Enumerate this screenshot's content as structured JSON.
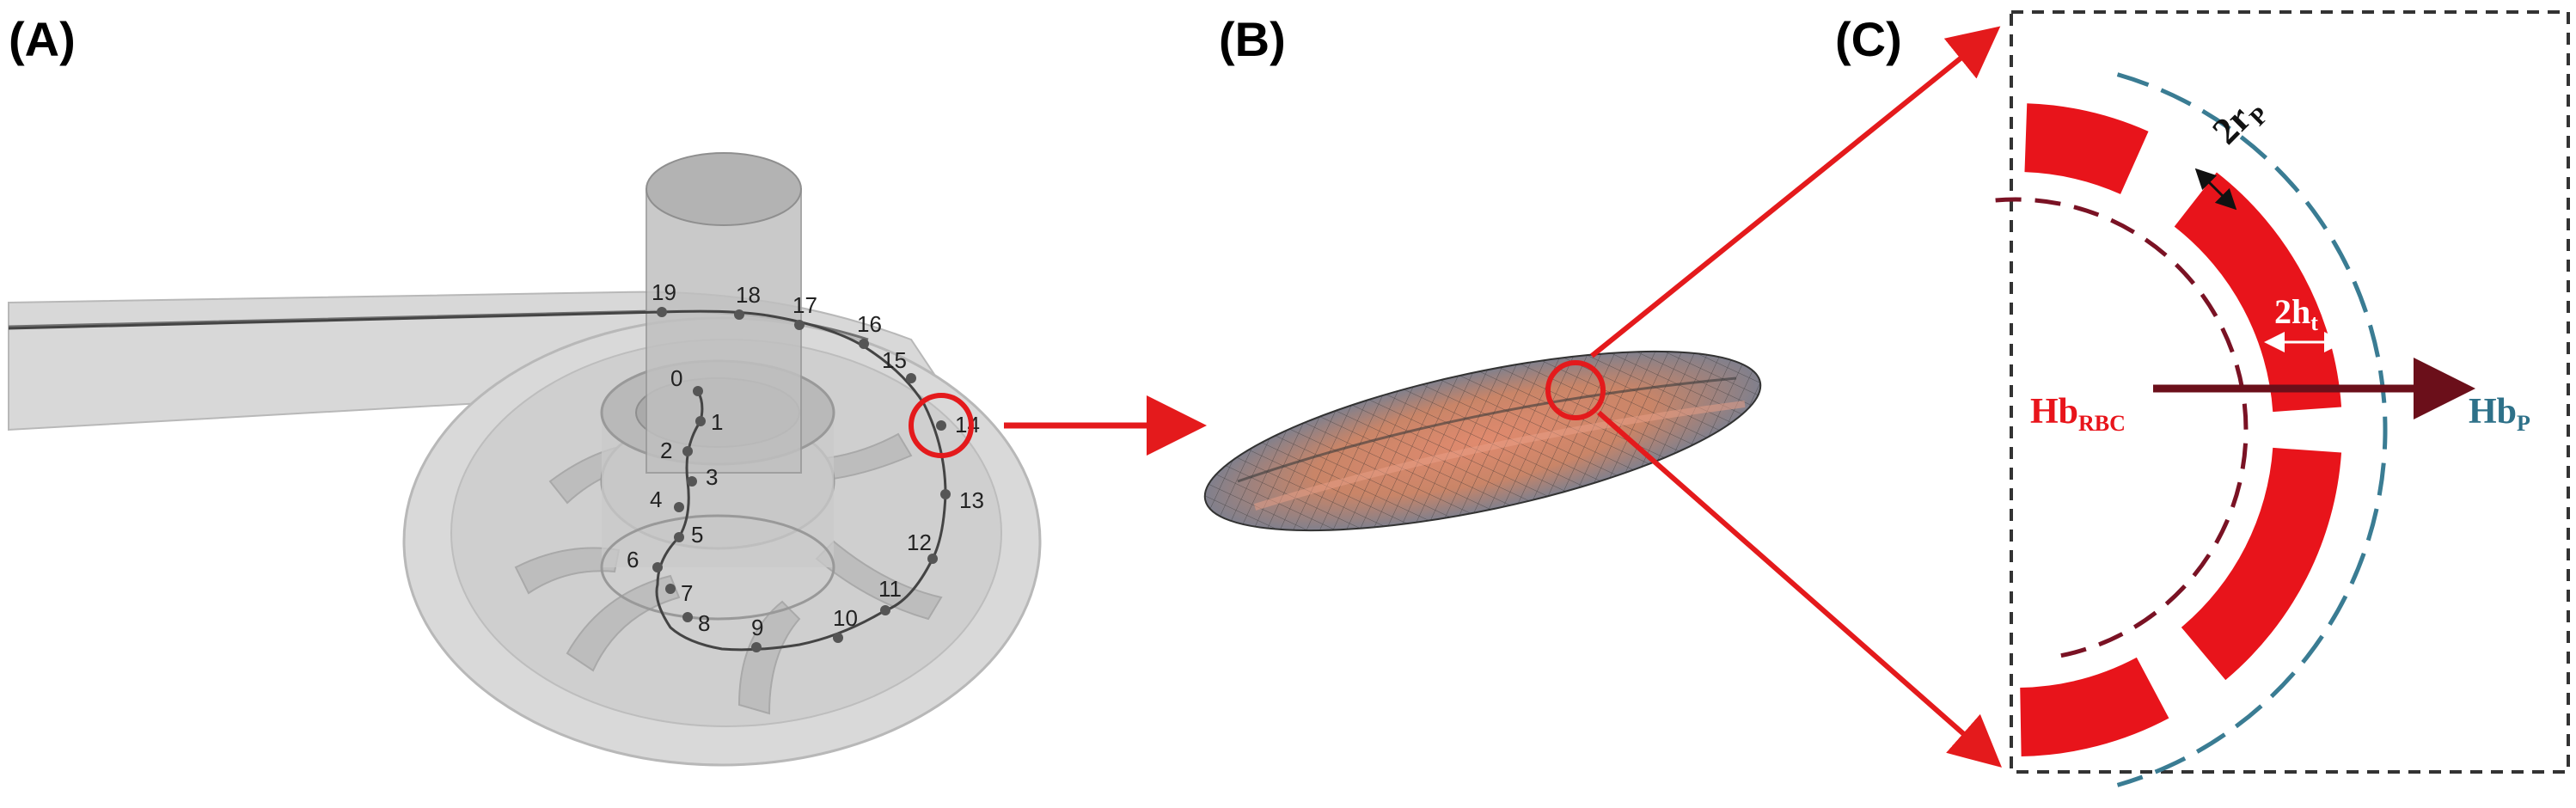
{
  "panels": [
    {
      "label": "(A)"
    },
    {
      "label": "(B)"
    },
    {
      "label": "(C)"
    }
  ],
  "pump": {
    "path_points": [
      "0",
      "1",
      "2",
      "3",
      "4",
      "5",
      "6",
      "7",
      "8",
      "9",
      "10",
      "11",
      "12",
      "13",
      "14",
      "15",
      "16",
      "17",
      "18",
      "19"
    ],
    "highlighted_point": "14"
  },
  "membrane": {
    "pore_label_main": "2r",
    "pore_label_sub": "P",
    "thickness_label_main": "2h",
    "thickness_label_sub": "t",
    "left_label_main": "Hb",
    "left_label_sub": "RBC",
    "right_label_main": "Hb",
    "right_label_sub": "P"
  },
  "colors": {
    "highlight": "#e41a1c",
    "membrane_fill": "#e8141b",
    "inner_dash": "#7a1224",
    "outer_dash": "#3a7c93",
    "flux_arrow": "#6b0f1a",
    "right_text": "#2e7189"
  }
}
